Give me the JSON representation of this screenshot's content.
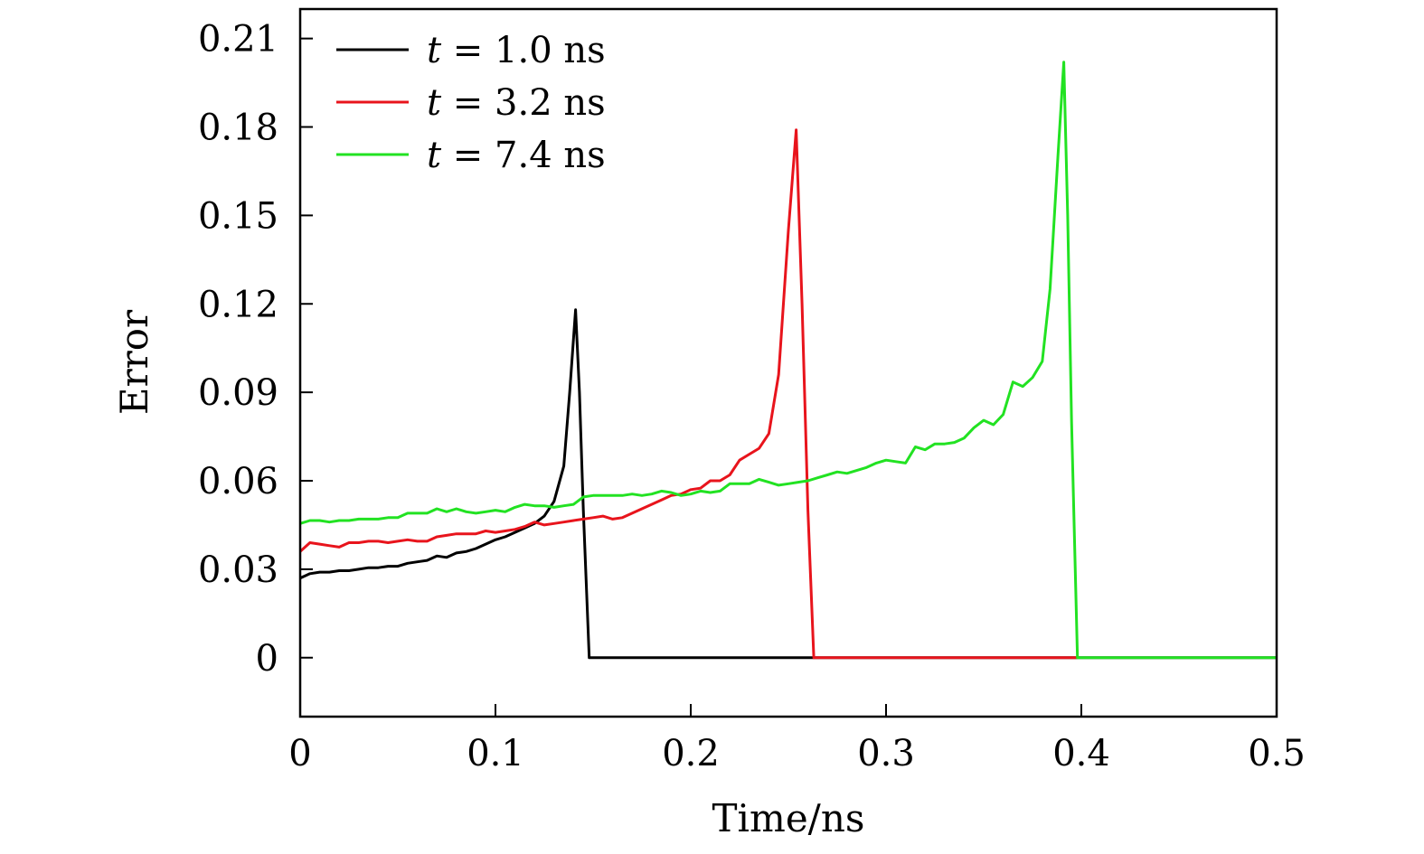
{
  "chart_data": {
    "type": "line",
    "title": "",
    "xlabel": "Time/ns",
    "ylabel": "Error",
    "xlim": [
      0,
      0.5
    ],
    "ylim": [
      -0.02,
      0.22
    ],
    "xticks": [
      0,
      0.1,
      0.2,
      0.3,
      0.4,
      0.5
    ],
    "xtick_labels": [
      "0",
      "0.1",
      "0.2",
      "0.3",
      "0.4",
      "0.5"
    ],
    "yticks": [
      0,
      0.03,
      0.06,
      0.09,
      0.12,
      0.15,
      0.18,
      0.21
    ],
    "ytick_labels": [
      "0",
      "0.03",
      "0.06",
      "0.09",
      "0.12",
      "0.15",
      "0.18",
      "0.21"
    ],
    "grid": false,
    "legend_position": "top-left",
    "series": [
      {
        "name": "t = 1.0 ns",
        "label_var": "t",
        "label_rest": " = 1.0 ns",
        "color": "#000000",
        "x": [
          0.0,
          0.005,
          0.01,
          0.015,
          0.02,
          0.025,
          0.03,
          0.035,
          0.04,
          0.045,
          0.05,
          0.055,
          0.06,
          0.065,
          0.07,
          0.075,
          0.08,
          0.085,
          0.09,
          0.095,
          0.1,
          0.105,
          0.11,
          0.115,
          0.12,
          0.125,
          0.13,
          0.135,
          0.138,
          0.141,
          0.143,
          0.145,
          0.148,
          0.15,
          0.2,
          0.25,
          0.26,
          0.3,
          0.4,
          0.5
        ],
        "y": [
          0.027,
          0.0285,
          0.029,
          0.029,
          0.0295,
          0.0295,
          0.03,
          0.0305,
          0.0305,
          0.031,
          0.031,
          0.032,
          0.0325,
          0.033,
          0.0345,
          0.034,
          0.0355,
          0.036,
          0.037,
          0.0385,
          0.04,
          0.041,
          0.0425,
          0.044,
          0.0455,
          0.048,
          0.053,
          0.065,
          0.09,
          0.118,
          0.09,
          0.05,
          0.0,
          0.0,
          0.0,
          0.0,
          0.0,
          0.0,
          0.0,
          0.0
        ]
      },
      {
        "name": "t = 3.2 ns",
        "label_var": "t",
        "label_rest": " = 3.2 ns",
        "color": "#e8141c",
        "x": [
          0.0,
          0.005,
          0.01,
          0.015,
          0.02,
          0.025,
          0.03,
          0.035,
          0.04,
          0.045,
          0.05,
          0.055,
          0.06,
          0.065,
          0.07,
          0.075,
          0.08,
          0.085,
          0.09,
          0.095,
          0.1,
          0.105,
          0.11,
          0.115,
          0.12,
          0.125,
          0.13,
          0.135,
          0.14,
          0.145,
          0.15,
          0.155,
          0.16,
          0.165,
          0.17,
          0.175,
          0.18,
          0.185,
          0.19,
          0.195,
          0.2,
          0.205,
          0.21,
          0.215,
          0.22,
          0.225,
          0.23,
          0.235,
          0.24,
          0.245,
          0.25,
          0.254,
          0.257,
          0.26,
          0.263,
          0.3,
          0.35,
          0.398
        ],
        "y": [
          0.036,
          0.039,
          0.0385,
          0.038,
          0.0375,
          0.039,
          0.039,
          0.0395,
          0.0395,
          0.039,
          0.0395,
          0.04,
          0.0395,
          0.0395,
          0.041,
          0.0415,
          0.042,
          0.042,
          0.042,
          0.043,
          0.0425,
          0.043,
          0.0435,
          0.0445,
          0.046,
          0.045,
          0.0455,
          0.046,
          0.0465,
          0.047,
          0.0475,
          0.048,
          0.047,
          0.0475,
          0.049,
          0.0505,
          0.052,
          0.0535,
          0.055,
          0.0555,
          0.057,
          0.0575,
          0.06,
          0.06,
          0.062,
          0.067,
          0.069,
          0.071,
          0.076,
          0.096,
          0.145,
          0.179,
          0.12,
          0.05,
          0.0,
          0.0,
          0.0,
          0.0
        ]
      },
      {
        "name": "t = 7.4 ns",
        "label_var": "t",
        "label_rest": " = 7.4 ns",
        "color": "#22e222",
        "x": [
          0.0,
          0.005,
          0.01,
          0.015,
          0.02,
          0.025,
          0.03,
          0.035,
          0.04,
          0.045,
          0.05,
          0.055,
          0.06,
          0.065,
          0.07,
          0.075,
          0.08,
          0.085,
          0.09,
          0.095,
          0.1,
          0.105,
          0.11,
          0.115,
          0.12,
          0.125,
          0.13,
          0.135,
          0.14,
          0.145,
          0.15,
          0.155,
          0.16,
          0.165,
          0.17,
          0.175,
          0.18,
          0.185,
          0.19,
          0.195,
          0.2,
          0.205,
          0.21,
          0.215,
          0.22,
          0.225,
          0.23,
          0.235,
          0.24,
          0.245,
          0.25,
          0.255,
          0.26,
          0.265,
          0.27,
          0.275,
          0.28,
          0.285,
          0.29,
          0.295,
          0.3,
          0.305,
          0.31,
          0.315,
          0.32,
          0.325,
          0.33,
          0.335,
          0.34,
          0.345,
          0.35,
          0.355,
          0.36,
          0.365,
          0.37,
          0.375,
          0.38,
          0.384,
          0.388,
          0.391,
          0.393,
          0.395,
          0.398,
          0.4,
          0.45,
          0.5
        ],
        "y": [
          0.0455,
          0.0465,
          0.0465,
          0.046,
          0.0465,
          0.0465,
          0.047,
          0.047,
          0.047,
          0.0475,
          0.0475,
          0.049,
          0.049,
          0.049,
          0.0505,
          0.0495,
          0.0505,
          0.0495,
          0.049,
          0.0495,
          0.05,
          0.0495,
          0.051,
          0.052,
          0.0515,
          0.0515,
          0.051,
          0.0515,
          0.052,
          0.0545,
          0.055,
          0.055,
          0.055,
          0.055,
          0.0555,
          0.055,
          0.0555,
          0.0565,
          0.056,
          0.055,
          0.0555,
          0.0565,
          0.056,
          0.0565,
          0.059,
          0.059,
          0.059,
          0.0605,
          0.0595,
          0.0585,
          0.059,
          0.0595,
          0.06,
          0.061,
          0.062,
          0.063,
          0.0625,
          0.0635,
          0.0645,
          0.066,
          0.067,
          0.0665,
          0.066,
          0.0715,
          0.0705,
          0.0725,
          0.0725,
          0.073,
          0.0745,
          0.078,
          0.0805,
          0.079,
          0.0825,
          0.0935,
          0.092,
          0.095,
          0.1005,
          0.125,
          0.17,
          0.202,
          0.15,
          0.08,
          0.0,
          0.0,
          0.0,
          0.0
        ]
      }
    ]
  }
}
